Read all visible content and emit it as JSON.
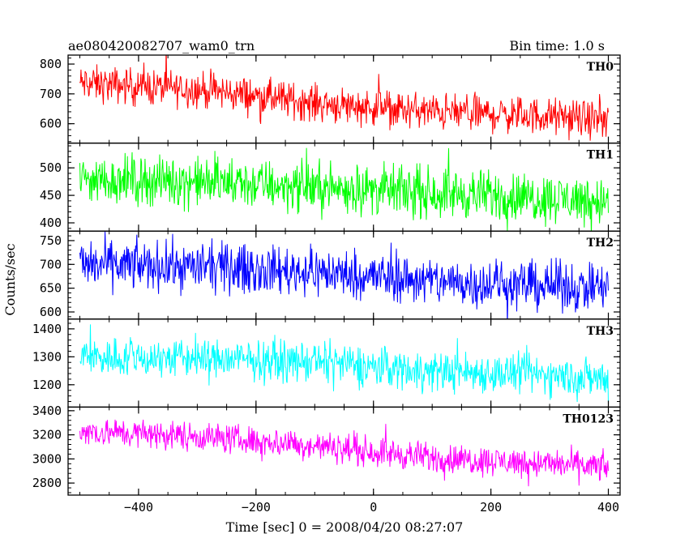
{
  "chart_data": {
    "type": "line",
    "title": "ae080420082707_wam0_trn",
    "subtitle": "Bin time: 1.0 s",
    "xlabel": "Time [sec] 0 = 2008/04/20 08:27:07",
    "ylabel": "Counts/sec",
    "xlim": [
      -520,
      420
    ],
    "x_ticks": [
      -400,
      -200,
      0,
      200,
      400
    ],
    "x_data_range": [
      -500,
      400
    ],
    "bin_time_s": 1.0,
    "grid": false,
    "panels": [
      {
        "name": "TH0",
        "color": "#ff0000",
        "ylim": [
          535,
          830
        ],
        "y_ticks": [
          600,
          700,
          800
        ],
        "trend": [
          [
            -500,
            735
          ],
          [
            -300,
            715
          ],
          [
            -100,
            670
          ],
          [
            100,
            640
          ],
          [
            300,
            625
          ],
          [
            400,
            610
          ]
        ],
        "noise": 30,
        "spike": 65
      },
      {
        "name": "TH1",
        "color": "#00ff00",
        "ylim": [
          385,
          545
        ],
        "y_ticks": [
          400,
          450,
          500
        ],
        "trend": [
          [
            -500,
            480
          ],
          [
            -300,
            475
          ],
          [
            -100,
            465
          ],
          [
            100,
            455
          ],
          [
            300,
            445
          ],
          [
            400,
            440
          ]
        ],
        "noise": 22,
        "spike": 48
      },
      {
        "name": "TH2",
        "color": "#0000ff",
        "ylim": [
          585,
          770
        ],
        "y_ticks": [
          600,
          650,
          700,
          750
        ],
        "trend": [
          [
            -500,
            700
          ],
          [
            -300,
            695
          ],
          [
            -100,
            685
          ],
          [
            100,
            665
          ],
          [
            300,
            655
          ],
          [
            400,
            650
          ]
        ],
        "noise": 25,
        "spike": 55
      },
      {
        "name": "TH3",
        "color": "#00ffff",
        "ylim": [
          1120,
          1435
        ],
        "y_ticks": [
          1200,
          1300,
          1400
        ],
        "trend": [
          [
            -500,
            1300
          ],
          [
            -300,
            1295
          ],
          [
            -100,
            1280
          ],
          [
            100,
            1250
          ],
          [
            300,
            1235
          ],
          [
            400,
            1220
          ]
        ],
        "noise": 35,
        "spike": 80
      },
      {
        "name": "TH0123",
        "color": "#ff00ff",
        "ylim": [
          2700,
          3430
        ],
        "y_ticks": [
          2800,
          3000,
          3200,
          3400
        ],
        "trend": [
          [
            -500,
            3230
          ],
          [
            -300,
            3190
          ],
          [
            -100,
            3110
          ],
          [
            100,
            3010
          ],
          [
            300,
            2960
          ],
          [
            400,
            2930
          ]
        ],
        "noise": 60,
        "spike": 150
      }
    ]
  }
}
